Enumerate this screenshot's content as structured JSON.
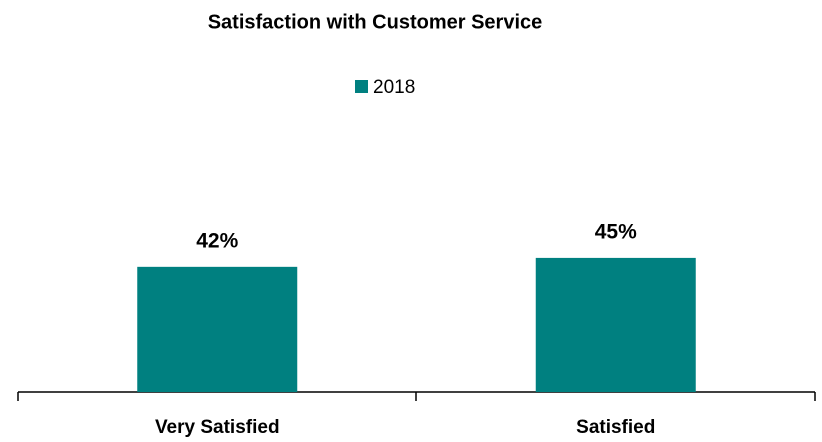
{
  "chart_data": {
    "type": "bar",
    "title": "Satisfaction with Customer Service",
    "categories": [
      "Very Satisfied",
      "Satisfied"
    ],
    "series": [
      {
        "name": "2018",
        "color": "#008080",
        "values": [
          42,
          45
        ],
        "value_labels": [
          "42%",
          "45%"
        ]
      }
    ]
  }
}
